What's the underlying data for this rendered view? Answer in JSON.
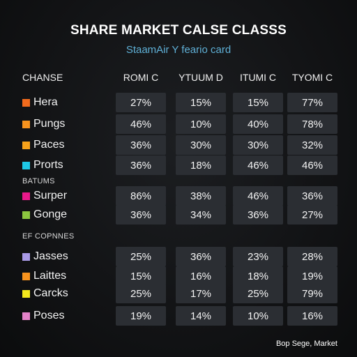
{
  "title": "SHARE MARKET CALSE CLASSS",
  "subtitle": "StaamAir Y feario card",
  "columns": {
    "label": "CHANSE",
    "headers": [
      "ROMI C",
      "YTUUM D",
      "ITUMI C",
      "TYOMI C"
    ]
  },
  "groups": [
    {
      "label": "",
      "rows": [
        {
          "name": "Hera",
          "color": "#f26b1d",
          "values": [
            "27%",
            "15%",
            "15%",
            "77%"
          ]
        },
        {
          "name": "Pungs",
          "color": "#f7931e",
          "values": [
            "46%",
            "10%",
            "40%",
            "78%"
          ]
        },
        {
          "name": "Paces",
          "color": "#f7a21b",
          "values": [
            "36%",
            "30%",
            "30%",
            "32%"
          ]
        },
        {
          "name": "Prorts",
          "color": "#1ec8e6",
          "values": [
            "36%",
            "18%",
            "46%",
            "46%"
          ]
        }
      ]
    },
    {
      "label": "BATUMS",
      "rows": [
        {
          "name": "Surper",
          "color": "#e8198b",
          "values": [
            "86%",
            "38%",
            "46%",
            "36%"
          ]
        },
        {
          "name": "Gonge",
          "color": "#8cc63f",
          "values": [
            "36%",
            "34%",
            "36%",
            "27%"
          ]
        }
      ]
    },
    {
      "label": "EF COPNNES",
      "rows": [
        {
          "name": "Jasses",
          "color": "#a99ae6",
          "values": [
            "25%",
            "36%",
            "23%",
            "28%"
          ]
        },
        {
          "name": "Laittes",
          "color": "#f7931e",
          "values": [
            "15%",
            "16%",
            "18%",
            "19%"
          ]
        },
        {
          "name": "Carcks",
          "color": "#f2e81d",
          "values": [
            "25%",
            "17%",
            "25%",
            "79%"
          ]
        },
        {
          "name": "Poses",
          "color": "#e383c8",
          "values": [
            "19%",
            "14%",
            "10%",
            "16%"
          ]
        }
      ]
    }
  ],
  "footer": "Bop Sege, Market"
}
